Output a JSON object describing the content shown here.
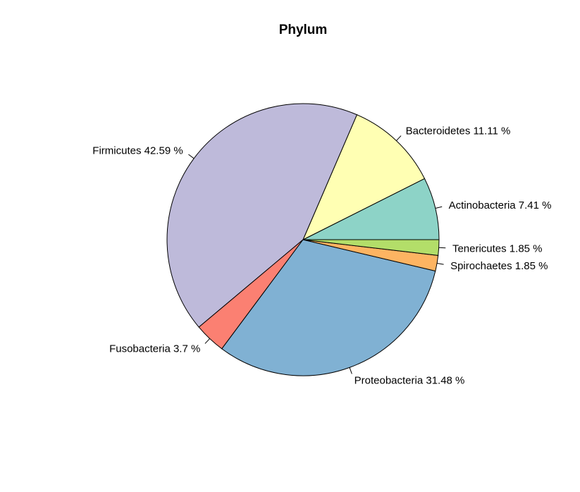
{
  "chart_data": {
    "type": "pie",
    "title": "Phylum",
    "start_angle_deg": 0,
    "direction": "counterclockwise",
    "slices": [
      {
        "label": "Actinobacteria 7.41 %",
        "value": 7.41,
        "color": "#8DD3C7"
      },
      {
        "label": "Bacteroidetes 11.11 %",
        "value": 11.11,
        "color": "#FFFFB3"
      },
      {
        "label": "Firmicutes 42.59 %",
        "value": 42.59,
        "color": "#BEBADA"
      },
      {
        "label": "Fusobacteria 3.7 %",
        "value": 3.7,
        "color": "#FB8072"
      },
      {
        "label": "Proteobacteria 31.48 %",
        "value": 31.48,
        "color": "#80B1D3"
      },
      {
        "label": "Spirochaetes 1.85 %",
        "value": 1.85,
        "color": "#FDB462"
      },
      {
        "label": "Tenericutes 1.85 %",
        "value": 1.85,
        "color": "#B3DE69"
      }
    ]
  }
}
